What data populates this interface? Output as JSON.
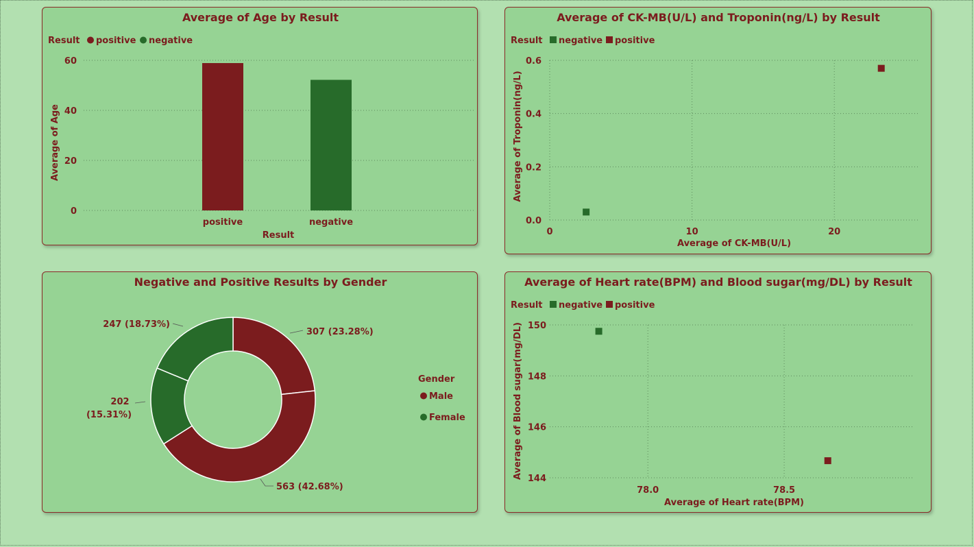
{
  "colors": {
    "positive": "#7b1c1e",
    "negative": "#276b2a",
    "text": "#7b1c1e",
    "card": "#96d394",
    "background": "#b2e0b0"
  },
  "chart_data": [
    {
      "id": "age",
      "type": "bar",
      "title": "Average of Age by Result",
      "legend_title": "Result",
      "legend": [
        {
          "label": "positive",
          "color": "#7b1c1e",
          "marker": "circle"
        },
        {
          "label": "negative",
          "color": "#276b2a",
          "marker": "circle"
        }
      ],
      "categories": [
        "positive",
        "negative"
      ],
      "values": [
        58.9,
        52.2
      ],
      "colors": [
        "#7b1c1e",
        "#276b2a"
      ],
      "xlabel": "Result",
      "ylabel": "Average of Age",
      "yticks": [
        0,
        20,
        40,
        60
      ],
      "ylim": [
        0,
        60
      ],
      "grid": true
    },
    {
      "id": "ckmb",
      "type": "scatter",
      "title": "Average of CK-MB(U/L) and Troponin(ng/L) by Result",
      "legend_title": "Result",
      "legend": [
        {
          "label": "negative",
          "color": "#276b2a",
          "marker": "square"
        },
        {
          "label": "positive",
          "color": "#7b1c1e",
          "marker": "square"
        }
      ],
      "series": [
        {
          "name": "negative",
          "x": 2.56,
          "y": 0.03,
          "color": "#276b2a"
        },
        {
          "name": "positive",
          "x": 23.3,
          "y": 0.57,
          "color": "#7b1c1e"
        }
      ],
      "xlabel": "Average of CK-MB(U/L)",
      "ylabel": "Average of Troponin(ng/L)",
      "xticks": [
        "0",
        "10",
        "20"
      ],
      "xlim": [
        0,
        25
      ],
      "yticks": [
        "0.0",
        "0.2",
        "0.4",
        "0.6"
      ],
      "ylim": [
        0,
        0.6
      ],
      "grid": true
    },
    {
      "id": "gender",
      "type": "pie",
      "title": "Negative and Positive Results by Gender",
      "legend_title": "Gender",
      "legend": [
        {
          "label": "Male",
          "color": "#7b1c1e"
        },
        {
          "label": "Female",
          "color": "#276b2a"
        }
      ],
      "slices": [
        {
          "value": 307,
          "label": "307 (23.28%)",
          "color": "#7b1c1e"
        },
        {
          "value": 563,
          "label": "563 (42.68%)",
          "color": "#7b1c1e"
        },
        {
          "value": 202,
          "label_line1": "202",
          "label_line2": "(15.31%)",
          "color": "#276b2a"
        },
        {
          "value": 247,
          "label": "247 (18.73%)",
          "color": "#276b2a"
        }
      ]
    },
    {
      "id": "heart",
      "type": "scatter",
      "title": "Average of Heart rate(BPM) and Blood sugar(mg/DL) by Result",
      "legend_title": "Result",
      "legend": [
        {
          "label": "negative",
          "color": "#276b2a",
          "marker": "square"
        },
        {
          "label": "positive",
          "color": "#7b1c1e",
          "marker": "square"
        }
      ],
      "series": [
        {
          "name": "negative",
          "x": 77.82,
          "y": 149.75,
          "color": "#276b2a"
        },
        {
          "name": "positive",
          "x": 78.66,
          "y": 144.67,
          "color": "#7b1c1e"
        }
      ],
      "xlabel": "Average of Heart rate(BPM)",
      "ylabel": "Average of Blood sugar(mg/DL)",
      "xticks": [
        "78.0",
        "78.5"
      ],
      "xlim": [
        77.64,
        78.98
      ],
      "yticks": [
        "144",
        "146",
        "148",
        "150"
      ],
      "ylim": [
        144,
        150
      ],
      "grid": true
    }
  ]
}
